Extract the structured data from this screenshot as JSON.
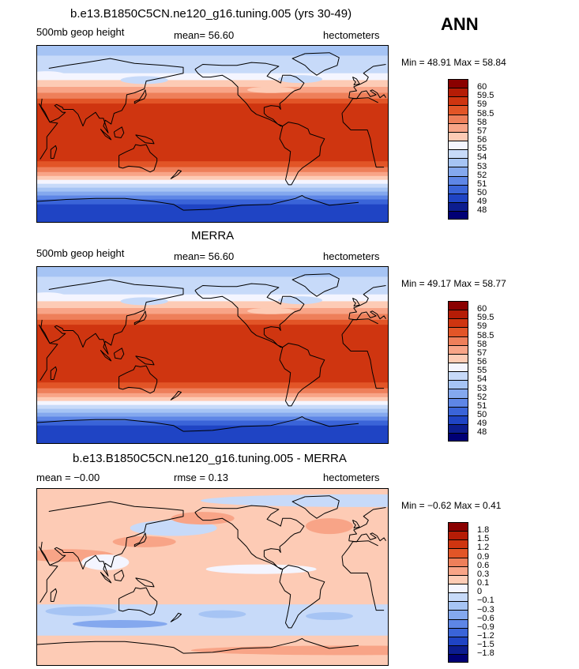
{
  "season": "ANN",
  "units_label": "hectometers",
  "panels": [
    {
      "title": "b.e13.B1850C5CN.ne120_g16.tuning.005 (yrs 30-49)",
      "left_label": "500mb geop height",
      "center_label": "mean=  56.60",
      "min_max": "Min =  48.91  Max =  58.84",
      "scale": "absolute",
      "min": 48.91,
      "max": 58.84,
      "legend_labels": [
        "60",
        "59.5",
        "59",
        "58.5",
        "58",
        "57",
        "56",
        "55",
        "54",
        "53",
        "52",
        "51",
        "50",
        "49",
        "48"
      ]
    },
    {
      "title": "MERRA",
      "left_label": "500mb geop height",
      "center_label": "mean=  56.60",
      "min_max": "Min =  49.17  Max =  58.77",
      "scale": "absolute",
      "min": 49.17,
      "max": 58.77,
      "legend_labels": [
        "60",
        "59.5",
        "59",
        "58.5",
        "58",
        "57",
        "56",
        "55",
        "54",
        "53",
        "52",
        "51",
        "50",
        "49",
        "48"
      ]
    },
    {
      "title": "b.e13.B1850C5CN.ne120_g16.tuning.005 - MERRA",
      "left_label": "mean =  −0.00",
      "center_label": "rmse =    0.13",
      "min_max": "Min =  −0.62  Max =    0.41",
      "scale": "difference",
      "min": -0.62,
      "max": 0.41,
      "legend_labels": [
        "1.8",
        "1.5",
        "1.2",
        "0.9",
        "0.6",
        "0.3",
        "0.1",
        "0",
        "−0.1",
        "−0.3",
        "−0.6",
        "−0.9",
        "−1.2",
        "−1.5",
        "−1.8"
      ]
    }
  ],
  "colors": {
    "legend_top_to_bottom": [
      "#8a0000",
      "#b51c06",
      "#cf3510",
      "#e25527",
      "#ee7f5a",
      "#f8a487",
      "#fdcbb5",
      "#f4f5ff",
      "#c7daf9",
      "#a6c4f4",
      "#84a8ee",
      "#5e86e6",
      "#3a64d8",
      "#1f44c4",
      "#0c1d8f",
      "#000075"
    ]
  },
  "icons": {
    "coastline": "world-coastline-outline"
  }
}
